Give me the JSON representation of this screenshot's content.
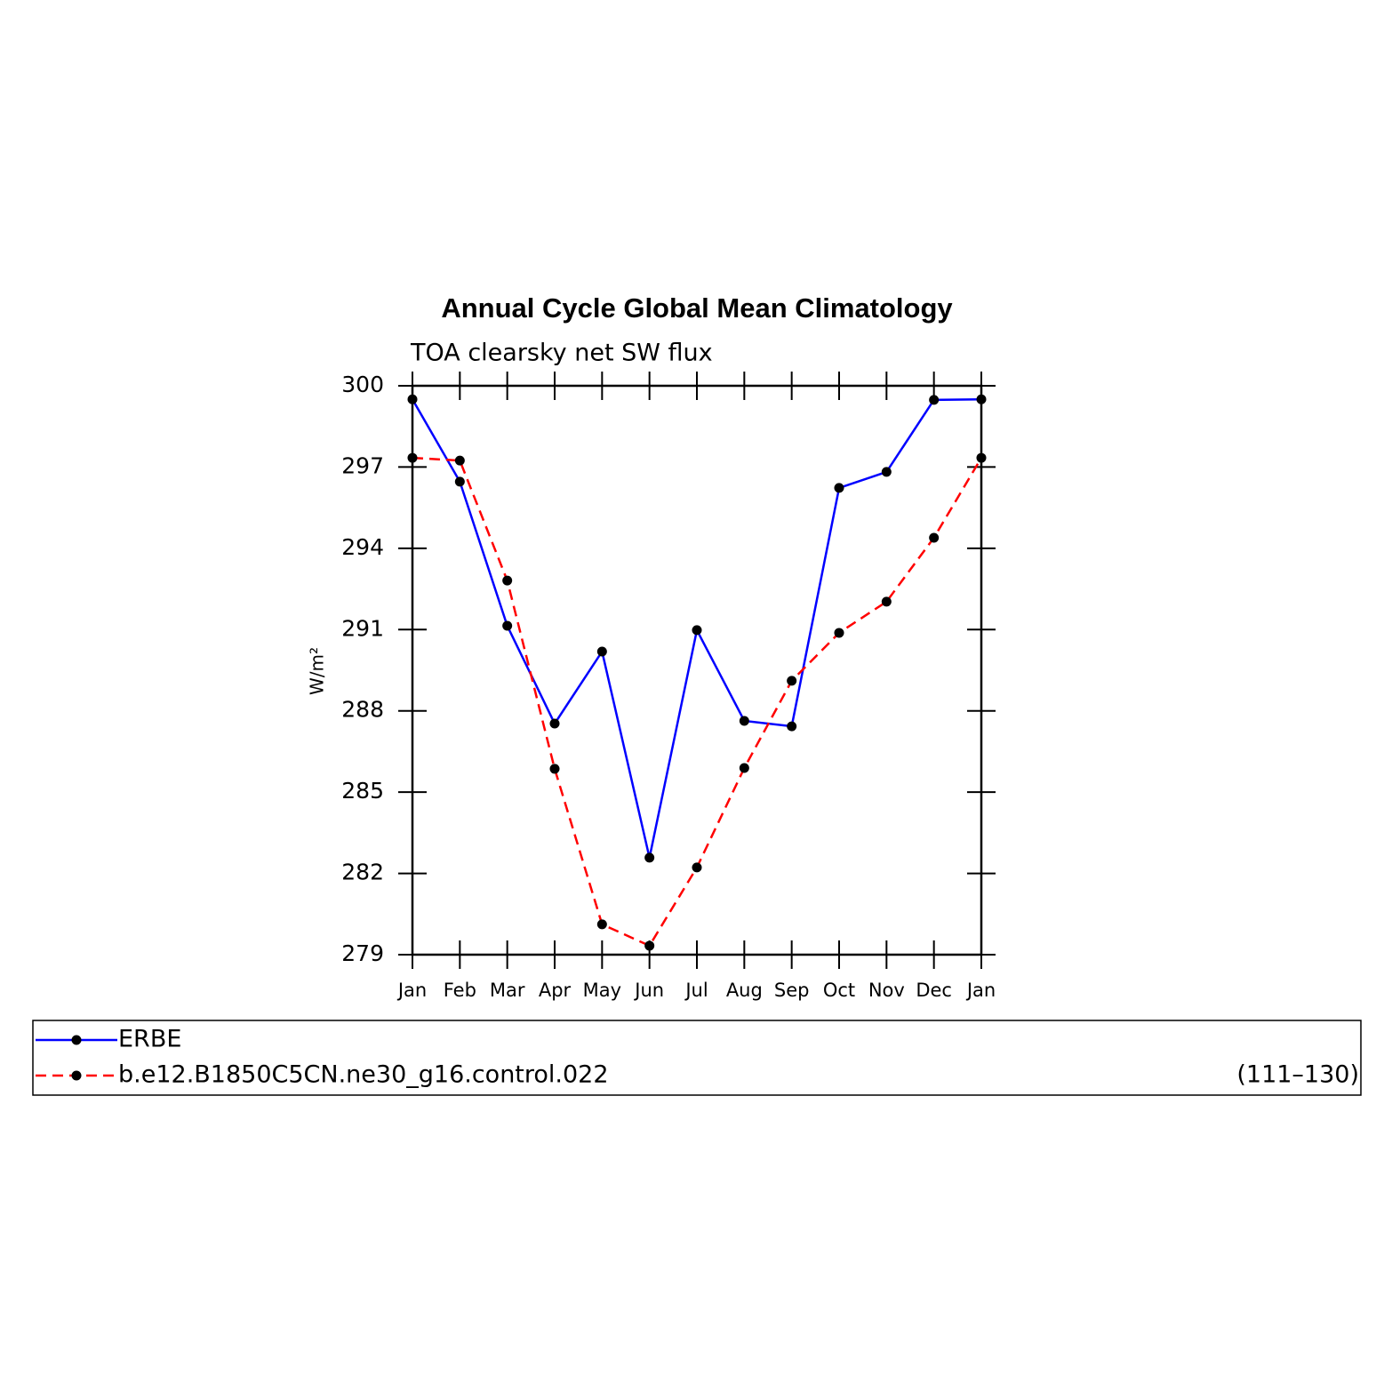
{
  "chart_data": {
    "type": "line",
    "title": "Annual Cycle Global Mean Climatology",
    "subtitle": "TOA clearsky net SW flux",
    "y_label": "W/m²",
    "categories": [
      "Jan",
      "Feb",
      "Mar",
      "Apr",
      "May",
      "Jun",
      "Jul",
      "Aug",
      "Sep",
      "Oct",
      "Nov",
      "Dec",
      "Jan"
    ],
    "series": [
      {
        "name": "ERBE",
        "color": "#0000ff",
        "dash": false,
        "values": [
          299.5,
          296.46,
          291.14,
          287.53,
          290.19,
          282.58,
          290.98,
          287.63,
          287.43,
          296.23,
          296.82,
          299.48,
          299.5
        ]
      },
      {
        "name": "b.e12.B1850C5CN.ne30_g16.control.022",
        "color": "#ff0000",
        "dash": true,
        "note": "(111–130)",
        "values": [
          297.34,
          297.24,
          292.81,
          285.86,
          280.12,
          279.33,
          282.22,
          285.89,
          289.11,
          290.88,
          292.03,
          294.39,
          297.34
        ]
      }
    ],
    "marker_color": "#000000",
    "ylim": [
      279,
      300
    ],
    "yticks": [
      279,
      282,
      285,
      288,
      291,
      294,
      297,
      300
    ],
    "grid": false
  }
}
